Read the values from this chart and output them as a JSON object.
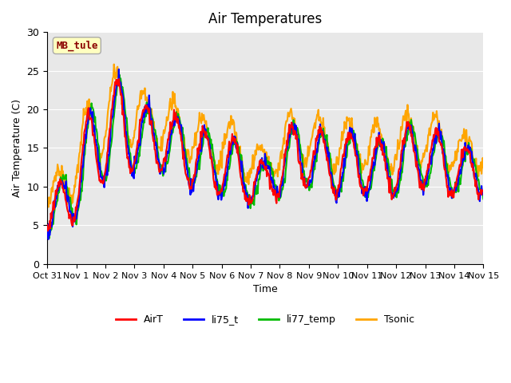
{
  "title": "Air Temperatures",
  "ylabel": "Air Temperature (C)",
  "xlabel": "Time",
  "ylim": [
    0,
    30
  ],
  "annotation_text": "MB_tule",
  "annotation_color": "#8B0000",
  "annotation_bg": "#FFFFC0",
  "line_colors": {
    "AirT": "#FF0000",
    "li75_t": "#0000FF",
    "li77_temp": "#00BB00",
    "Tsonic": "#FFA500"
  },
  "line_widths": {
    "AirT": 1.5,
    "li75_t": 1.5,
    "li77_temp": 1.5,
    "Tsonic": 1.5
  },
  "xtick_labels": [
    "Oct 31",
    "Nov 1",
    "Nov 2",
    "Nov 3",
    "Nov 4",
    "Nov 5",
    "Nov 6",
    "Nov 7",
    "Nov 8",
    "Nov 9",
    "Nov 10",
    "Nov 11",
    "Nov 12",
    "Nov 13",
    "Nov 14",
    "Nov 15"
  ],
  "ytick_labels": [
    "0",
    "5",
    "10",
    "15",
    "20",
    "25",
    "30"
  ],
  "ytick_values": [
    0,
    5,
    10,
    15,
    20,
    25,
    30
  ],
  "bg_color": "#E8E8E8",
  "fig_bg_color": "#FFFFFF",
  "legend_labels": [
    "AirT",
    "li75_t",
    "li77_temp",
    "Tsonic"
  ]
}
